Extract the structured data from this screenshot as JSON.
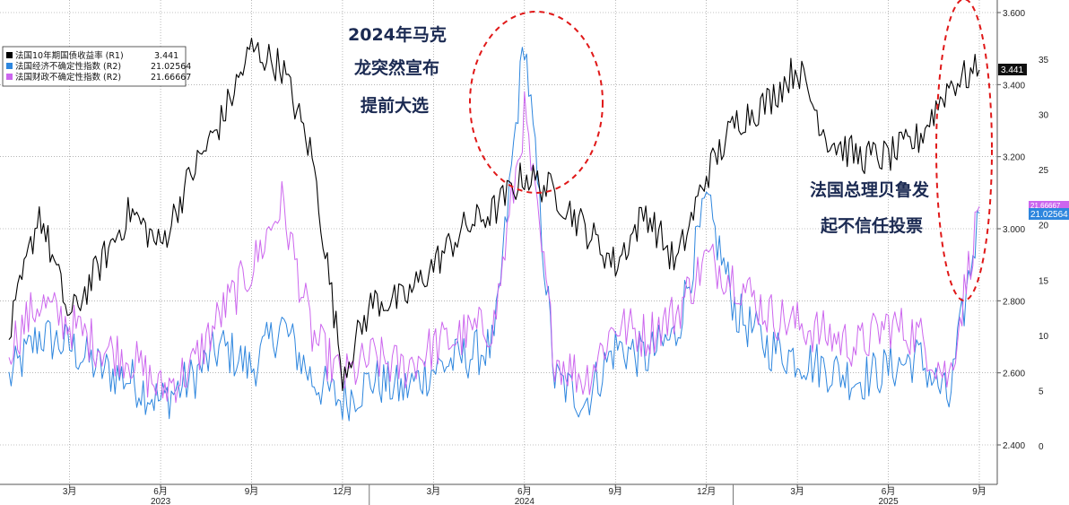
{
  "chart_data": {
    "type": "line",
    "legend": {
      "placement": "top-left",
      "entries": [
        {
          "label": "法国10年期国债收益率 (R1)",
          "value": "3.441",
          "color": "#000000"
        },
        {
          "label": "法国经济不确定性指数 (R2)",
          "value": "21.02564",
          "color": "#2e86de"
        },
        {
          "label": "法国财政不确定性指数 (R2)",
          "value": "21.66667",
          "color": "#cc66ee"
        }
      ]
    },
    "x_axis": {
      "months": [
        "3月",
        "6月",
        "9月",
        "12月",
        "3月",
        "6月",
        "9月",
        "12月",
        "3月",
        "6月",
        "9月"
      ],
      "years": [
        "2023",
        "2024",
        "2025"
      ],
      "range": [
        "2023-01",
        "2025-09"
      ]
    },
    "y_axis_r1": {
      "ticks": [
        "3.600",
        "3.400",
        "3.200",
        "3.000",
        "2.800",
        "2.600",
        "2.400"
      ],
      "range": [
        2.35,
        3.62
      ]
    },
    "y_axis_r2": {
      "ticks": [
        "35",
        "30",
        "25",
        "20",
        "15",
        "10",
        "5",
        "0"
      ],
      "range": [
        -1,
        40
      ]
    },
    "end_labels": {
      "yield": "3.441",
      "fiscal": "21.66667",
      "economic": "21.02564"
    },
    "grid": true,
    "series": [
      {
        "name": "法国10年期国债收益率 (R1)",
        "color": "#000000",
        "axis": "R1",
        "x": [
          "2023-01",
          "2023-02",
          "2023-03",
          "2023-04",
          "2023-05",
          "2023-06",
          "2023-07",
          "2023-08",
          "2023-09",
          "2023-10",
          "2023-11",
          "2023-12",
          "2024-01",
          "2024-02",
          "2024-03",
          "2024-04",
          "2024-05",
          "2024-06",
          "2024-07",
          "2024-08",
          "2024-09",
          "2024-10",
          "2024-11",
          "2024-12",
          "2025-01",
          "2025-02",
          "2025-03",
          "2025-04",
          "2025-05",
          "2025-06",
          "2025-07",
          "2025-08",
          "2025-09"
        ],
        "values": [
          2.7,
          3.05,
          2.75,
          2.9,
          3.05,
          2.95,
          3.15,
          3.3,
          3.5,
          3.45,
          3.2,
          2.6,
          2.8,
          2.8,
          2.9,
          3.0,
          3.05,
          3.15,
          3.1,
          3.0,
          2.9,
          3.05,
          2.9,
          3.15,
          3.3,
          3.35,
          3.45,
          3.25,
          3.2,
          3.2,
          3.25,
          3.4,
          3.441
        ]
      },
      {
        "name": "法国经济不确定性指数 (R2)",
        "color": "#2e86de",
        "axis": "R2",
        "x": [
          "2023-01",
          "2023-02",
          "2023-03",
          "2023-04",
          "2023-05",
          "2023-06",
          "2023-07",
          "2023-08",
          "2023-09",
          "2023-10",
          "2023-11",
          "2023-12",
          "2024-01",
          "2024-02",
          "2024-03",
          "2024-04",
          "2024-05",
          "2024-06",
          "2024-07",
          "2024-08",
          "2024-09",
          "2024-10",
          "2024-11",
          "2024-12",
          "2025-01",
          "2025-02",
          "2025-03",
          "2025-04",
          "2025-05",
          "2025-06",
          "2025-07",
          "2025-08",
          "2025-09"
        ],
        "values": [
          6,
          10,
          9,
          7,
          6,
          4,
          6,
          9,
          7,
          11,
          6,
          4,
          6,
          5,
          7,
          8,
          9,
          37,
          6,
          4,
          9,
          8,
          10,
          22,
          12,
          9,
          8,
          7,
          6,
          7,
          8,
          4,
          21.02564
        ]
      },
      {
        "name": "法国财政不确定性指数 (R2)",
        "color": "#cc66ee",
        "axis": "R2",
        "x": [
          "2023-01",
          "2023-02",
          "2023-03",
          "2023-04",
          "2023-05",
          "2023-06",
          "2023-07",
          "2023-08",
          "2023-09",
          "2023-10",
          "2023-11",
          "2023-12",
          "2024-01",
          "2024-02",
          "2024-03",
          "2024-04",
          "2024-05",
          "2024-06",
          "2024-07",
          "2024-08",
          "2024-09",
          "2024-10",
          "2024-11",
          "2024-12",
          "2025-01",
          "2025-02",
          "2025-03",
          "2025-04",
          "2025-05",
          "2025-06",
          "2025-07",
          "2025-08",
          "2025-09"
        ],
        "values": [
          9,
          13,
          11,
          9,
          8,
          5,
          7,
          12,
          16,
          22,
          10,
          6,
          8,
          7,
          9,
          10,
          11,
          30,
          8,
          6,
          11,
          10,
          12,
          17,
          15,
          12,
          11,
          10,
          9,
          11,
          10,
          6,
          21.66667
        ]
      }
    ],
    "annotations": [
      {
        "lines": [
          "2024年马克",
          "龙突然宣布",
          "提前大选"
        ]
      },
      {
        "lines": [
          "法国总理贝鲁发",
          "起不信任投票"
        ]
      }
    ]
  }
}
